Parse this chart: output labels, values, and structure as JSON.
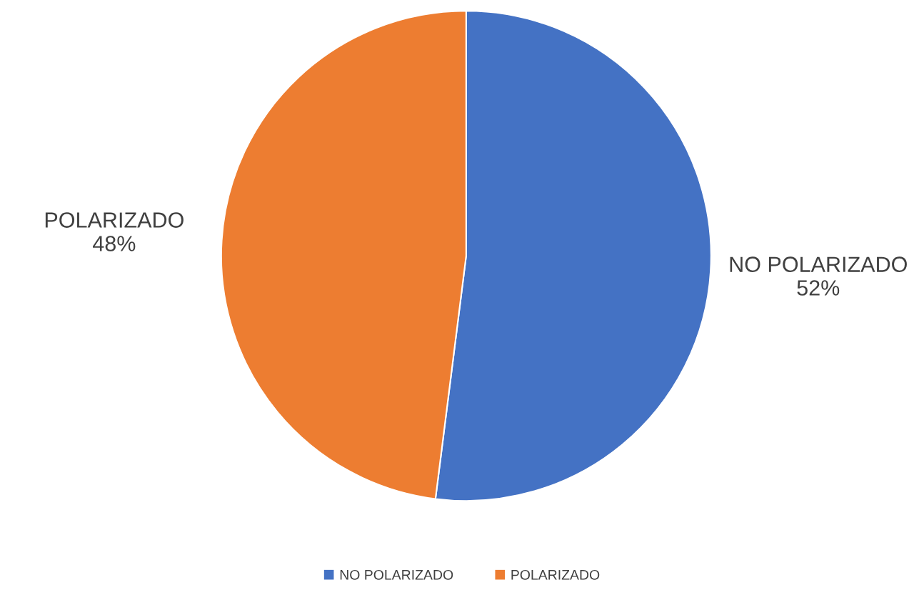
{
  "chart_data": {
    "type": "pie",
    "categories": [
      "NO POLARIZADO",
      "POLARIZADO"
    ],
    "values": [
      52,
      48
    ],
    "colors": [
      "#4472c4",
      "#ed7d31"
    ],
    "value_labels": [
      "52%",
      "48%"
    ],
    "legend": "bottom"
  }
}
